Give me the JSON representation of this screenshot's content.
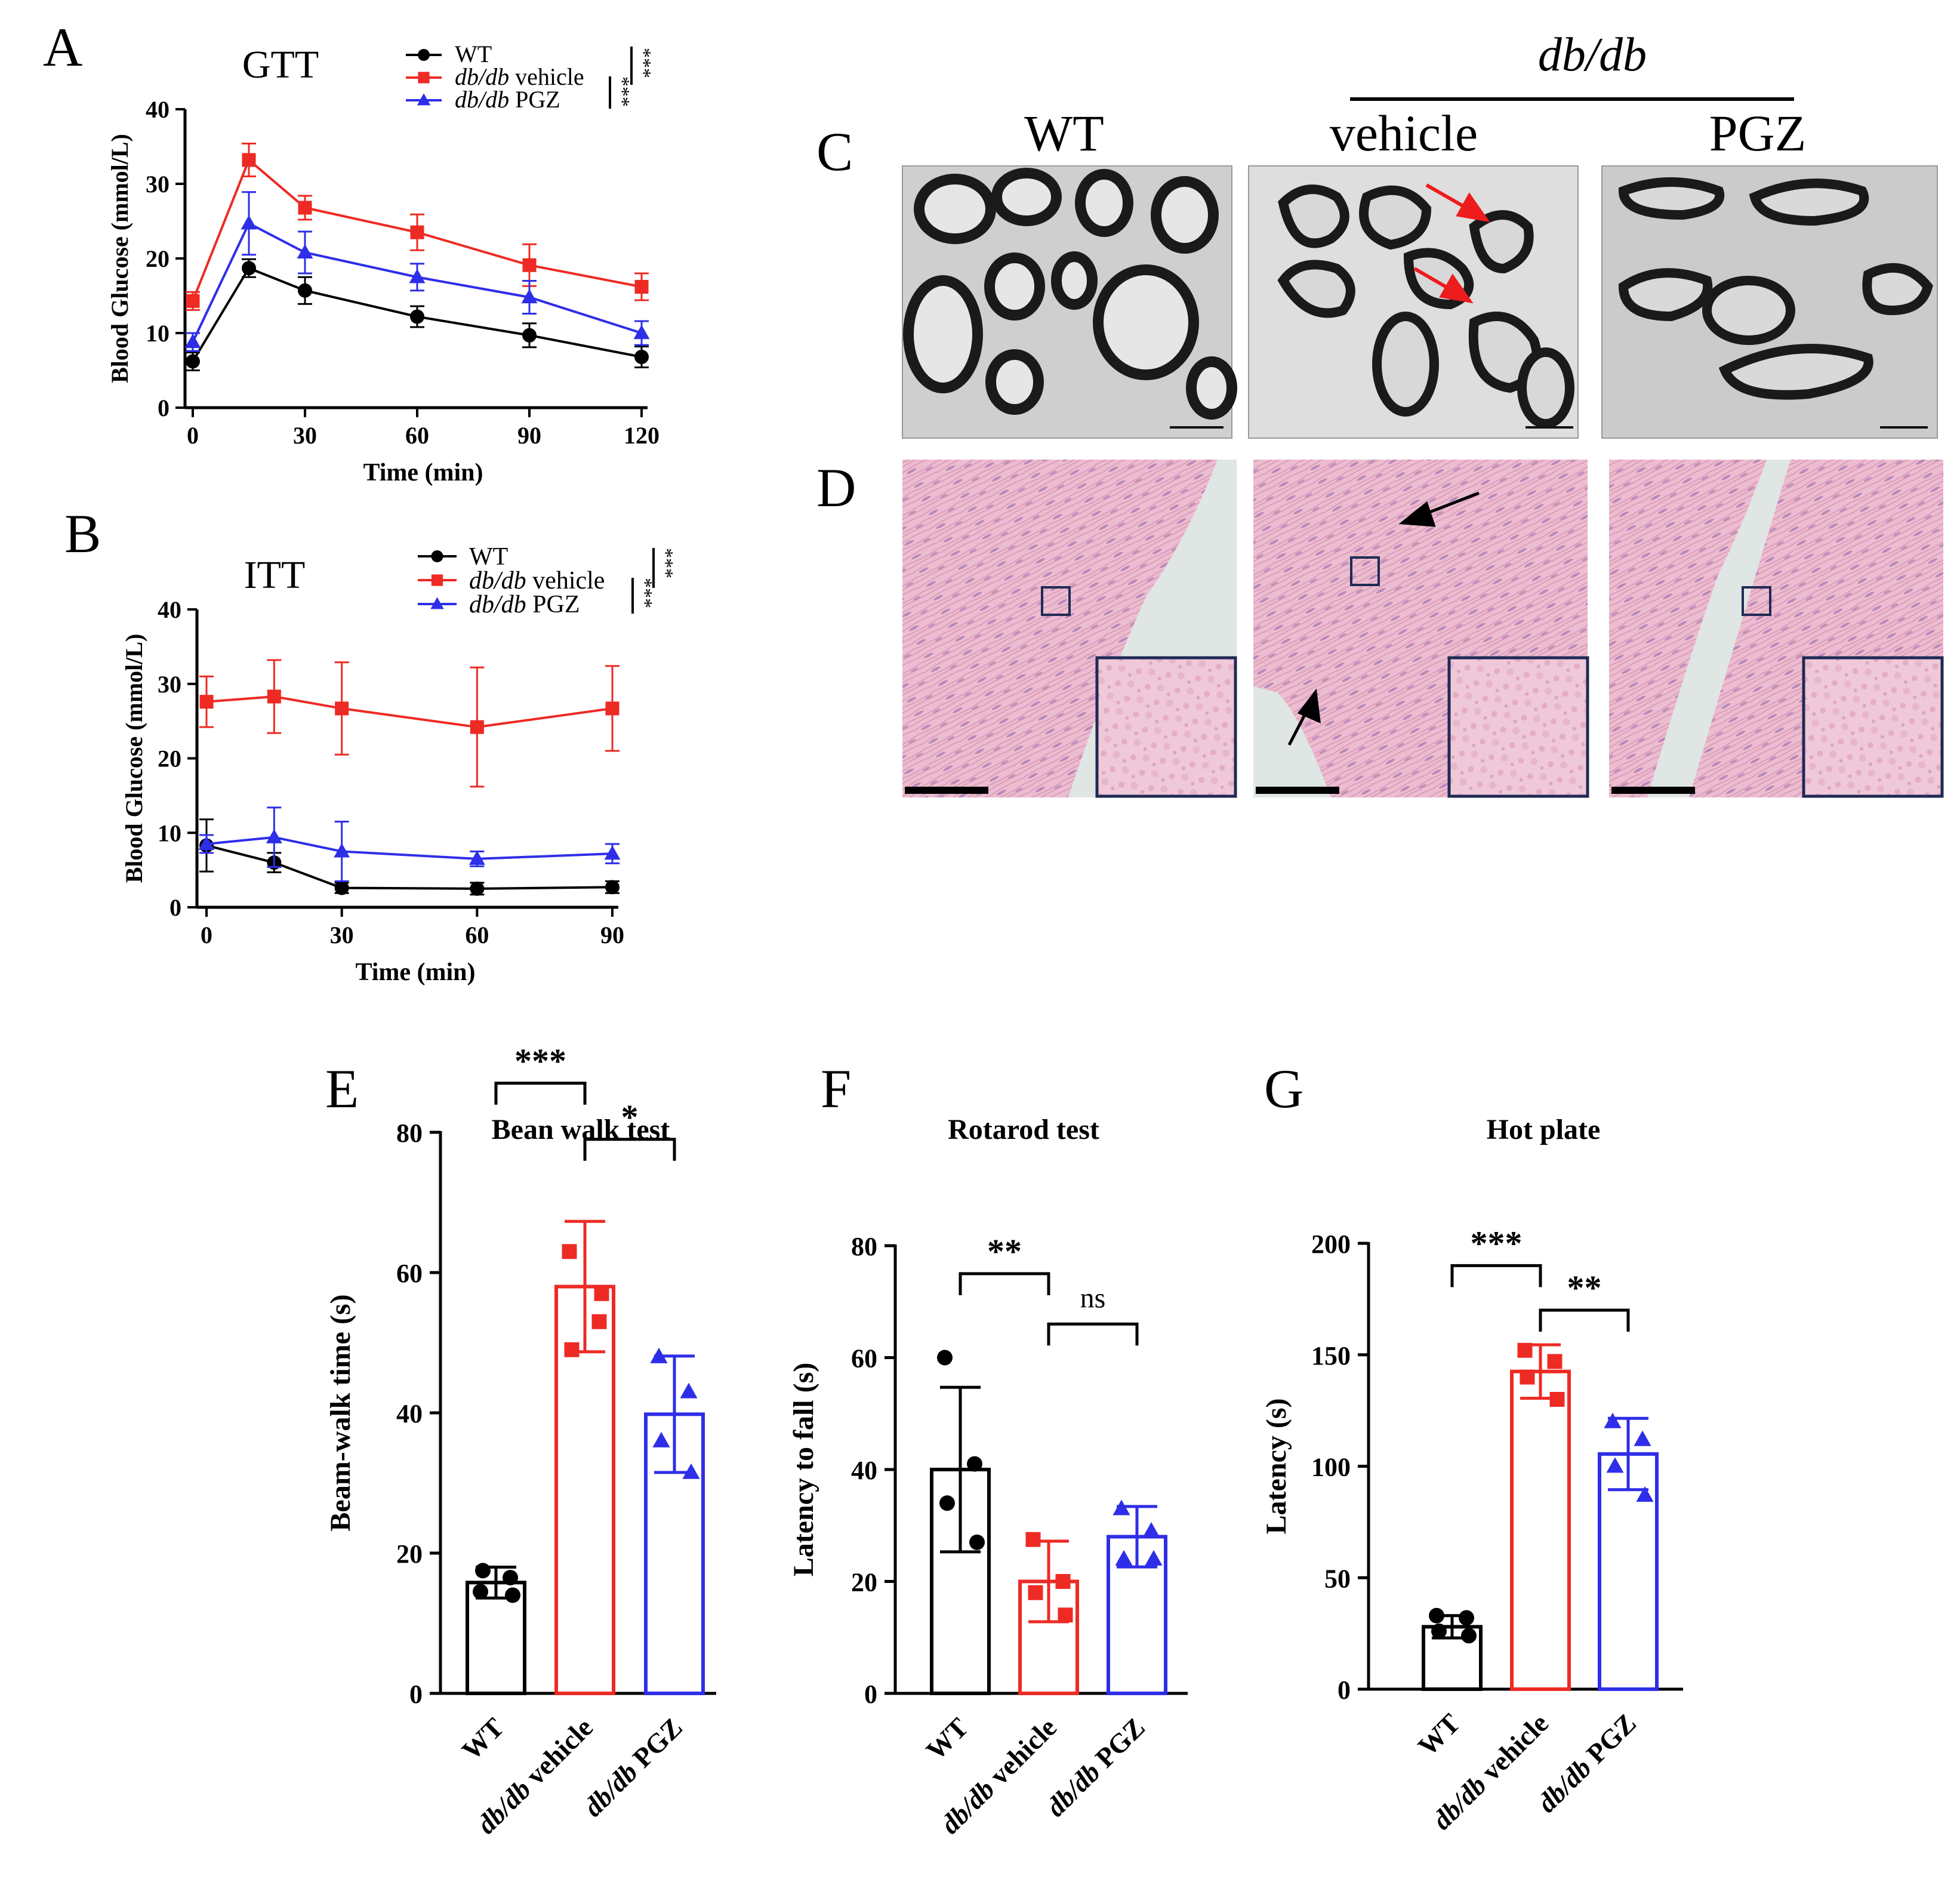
{
  "panel_letters": [
    "A",
    "B",
    "C",
    "D",
    "E",
    "F",
    "G"
  ],
  "colors": {
    "wt": "#000000",
    "vehicle": "#ee2a24",
    "pgz": "#2e2ee8",
    "box": "#1f2a55",
    "tissue": "#eab6cc",
    "tissue_bg": "#dfe6e4",
    "em_bg": "#cdcdcd"
  },
  "legend": {
    "wt": "WT",
    "vehicle_italic": "db/db",
    "vehicle_rest": " vehicle",
    "pgz_italic": "db/db",
    "pgz_rest": " PGZ",
    "sig_outer": "***",
    "sig_inner": "***"
  },
  "histology": {
    "group_label": "db/db",
    "columns": [
      "WT",
      "vehicle",
      "PGZ"
    ]
  },
  "chart_data": [
    {
      "id": "A",
      "type": "line",
      "title": "GTT",
      "xlabel": "Time (min)",
      "ylabel": "Blood Glucose (mmol/L)",
      "x": [
        0,
        15,
        30,
        60,
        90,
        120
      ],
      "xticks": [
        0,
        30,
        60,
        90,
        120
      ],
      "ylim": [
        0,
        40
      ],
      "yticks": [
        0,
        10,
        20,
        30,
        40
      ],
      "series": [
        {
          "name": "WT",
          "marker": "circle",
          "colorKey": "wt",
          "values": [
            6.2,
            18.7,
            15.7,
            12.2,
            9.7,
            6.8
          ],
          "err": [
            1.2,
            1.2,
            1.8,
            1.4,
            1.6,
            1.4
          ]
        },
        {
          "name": "db/db vehicle",
          "marker": "square",
          "colorKey": "vehicle",
          "values": [
            14.3,
            33.2,
            26.8,
            23.5,
            19.1,
            16.2
          ],
          "err": [
            1.2,
            2.2,
            1.6,
            2.4,
            2.8,
            1.8
          ]
        },
        {
          "name": "db/db PGZ",
          "marker": "triangle",
          "colorKey": "pgz",
          "values": [
            8.8,
            24.7,
            20.8,
            17.5,
            14.8,
            10.0
          ],
          "err": [
            1.2,
            4.2,
            2.8,
            1.8,
            2.2,
            1.6
          ]
        }
      ]
    },
    {
      "id": "B",
      "type": "line",
      "title": "ITT",
      "xlabel": "Time (min)",
      "ylabel": "Blood Glucose (mmol/L)",
      "x": [
        0,
        15,
        30,
        60,
        90
      ],
      "xticks": [
        0,
        30,
        60,
        90
      ],
      "ylim": [
        0,
        40
      ],
      "yticks": [
        0,
        10,
        20,
        30,
        40
      ],
      "series": [
        {
          "name": "WT",
          "marker": "circle",
          "colorKey": "wt",
          "values": [
            8.3,
            6.0,
            2.6,
            2.5,
            2.7
          ],
          "err": [
            3.5,
            1.3,
            0.7,
            0.8,
            0.8
          ]
        },
        {
          "name": "db/db vehicle",
          "marker": "square",
          "colorKey": "vehicle",
          "values": [
            27.6,
            28.3,
            26.7,
            24.2,
            26.7
          ],
          "err": [
            3.4,
            4.9,
            6.2,
            8.0,
            5.7
          ]
        },
        {
          "name": "db/db PGZ",
          "marker": "triangle",
          "colorKey": "pgz",
          "values": [
            8.5,
            9.4,
            7.5,
            6.5,
            7.2
          ],
          "err": [
            1.2,
            4.0,
            4.0,
            1.0,
            1.3
          ]
        }
      ]
    },
    {
      "id": "E",
      "type": "bar",
      "title": "Bean walk test",
      "ylabel": "Beam-walk time (s)",
      "categories": [
        "WT",
        "db/db vehicle",
        "db/db PGZ"
      ],
      "ylim": [
        0,
        80
      ],
      "yticks": [
        0,
        20,
        40,
        60,
        80
      ],
      "values": [
        15.8,
        58.0,
        39.8
      ],
      "err": [
        2.2,
        9.3,
        8.3
      ],
      "points": [
        [
          14.5,
          16.5,
          17.5,
          14.0
        ],
        [
          63.0,
          53.0,
          49.0,
          57.0
        ],
        [
          48.0,
          43.0,
          36.0,
          31.5
        ]
      ],
      "comparisons": [
        {
          "from": 0,
          "to": 1,
          "label": "***",
          "at": 87
        },
        {
          "from": 1,
          "to": 2,
          "label": "*",
          "at": 79
        }
      ]
    },
    {
      "id": "F",
      "type": "bar",
      "title": "Rotarod test",
      "ylabel": "Latency to fall (s)",
      "categories": [
        "WT",
        "db/db vehicle",
        "db/db PGZ"
      ],
      "ylim": [
        0,
        80
      ],
      "yticks": [
        0,
        20,
        40,
        60,
        80
      ],
      "values": [
        40.0,
        20.0,
        28.0
      ],
      "err": [
        14.7,
        7.2,
        5.4
      ],
      "points": [
        [
          60.0,
          41.0,
          34.0,
          27.0
        ],
        [
          27.5,
          20.0,
          18.0,
          14.0
        ],
        [
          33.0,
          29.0,
          24.0,
          24.0
        ]
      ],
      "comparisons": [
        {
          "from": 0,
          "to": 1,
          "label": "**",
          "at": 75
        },
        {
          "from": 1,
          "to": 2,
          "label": "ns",
          "at": 66
        }
      ]
    },
    {
      "id": "G",
      "type": "bar",
      "title": "Hot plate",
      "ylabel": "Latency (s)",
      "categories": [
        "WT",
        "db/db vehicle",
        "db/db PGZ"
      ],
      "ylim": [
        0,
        200
      ],
      "yticks": [
        0,
        50,
        100,
        150,
        200
      ],
      "values": [
        28.0,
        142.5,
        105.5
      ],
      "err": [
        5.0,
        12.0,
        16.0
      ],
      "points": [
        [
          33.0,
          32.0,
          26.0,
          24.0
        ],
        [
          152.0,
          147.0,
          140.0,
          130.0
        ],
        [
          120.0,
          112.0,
          100.0,
          87.0
        ]
      ],
      "comparisons": [
        {
          "from": 0,
          "to": 1,
          "label": "***",
          "at": 190
        },
        {
          "from": 1,
          "to": 2,
          "label": "**",
          "at": 170
        }
      ]
    }
  ]
}
